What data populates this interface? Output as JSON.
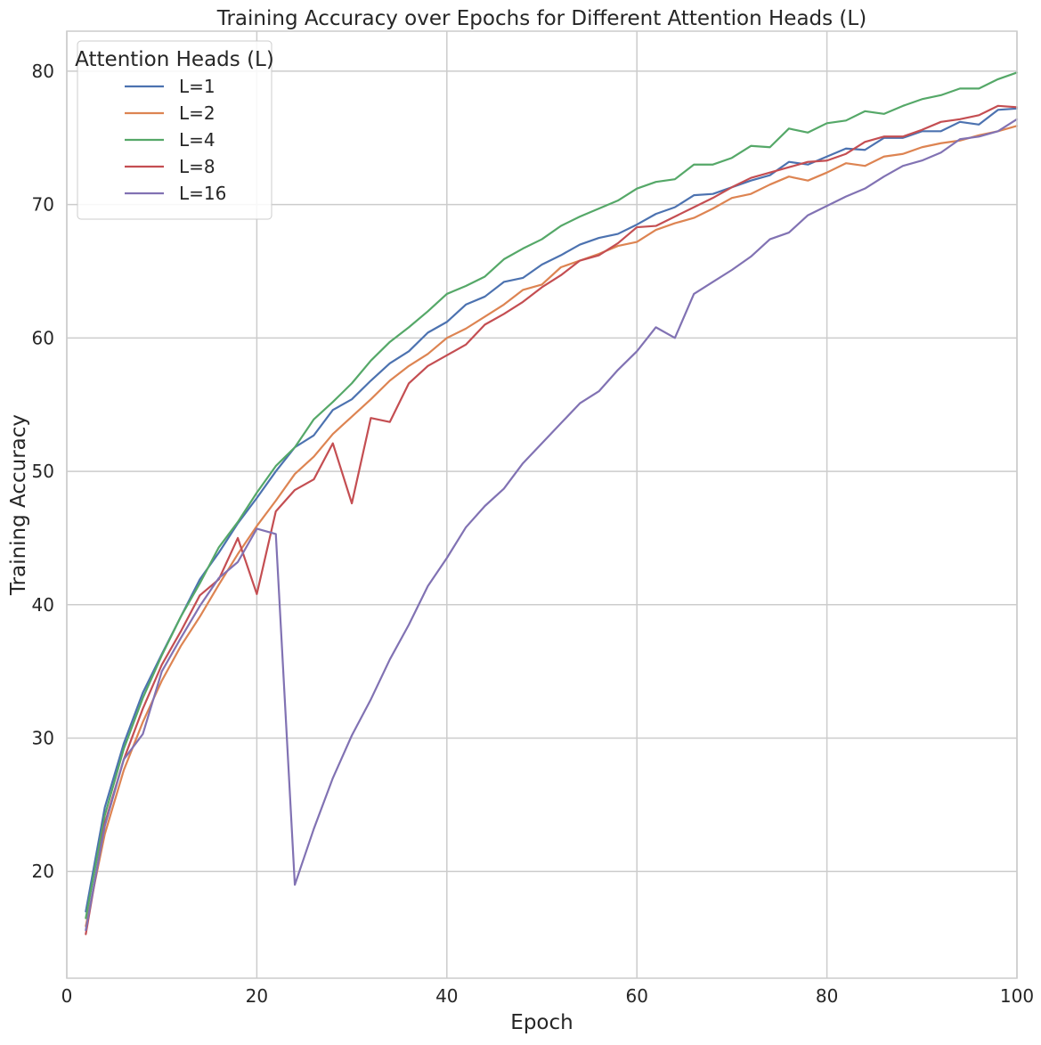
{
  "chart_data": {
    "type": "line",
    "title": "Training Accuracy over Epochs for Different Attention Heads (L)",
    "xlabel": "Epoch",
    "ylabel": "Training Accuracy",
    "xlim": [
      0,
      100
    ],
    "ylim": [
      12,
      83
    ],
    "xticks": [
      0,
      20,
      40,
      60,
      80,
      100
    ],
    "yticks": [
      20,
      30,
      40,
      50,
      60,
      70,
      80
    ],
    "grid": true,
    "legend": {
      "title": "Attention Heads (L)",
      "position": "top-left"
    },
    "x": [
      2,
      4,
      6,
      8,
      10,
      12,
      14,
      16,
      18,
      20,
      22,
      24,
      26,
      28,
      30,
      32,
      34,
      36,
      38,
      40,
      42,
      44,
      46,
      48,
      50,
      52,
      54,
      56,
      58,
      60,
      62,
      64,
      66,
      68,
      70,
      72,
      74,
      76,
      78,
      80,
      82,
      84,
      86,
      88,
      90,
      92,
      94,
      96,
      98,
      100
    ],
    "series": [
      {
        "name": "L=1",
        "color": "#4c72b0",
        "values": [
          17.0,
          24.8,
          29.6,
          33.4,
          36.3,
          39.1,
          41.9,
          43.9,
          46.1,
          48.0,
          50.0,
          51.8,
          52.7,
          54.6,
          55.4,
          56.8,
          58.1,
          59.0,
          60.4,
          61.2,
          62.5,
          63.1,
          64.2,
          64.5,
          65.5,
          66.2,
          67.0,
          67.5,
          67.8,
          68.5,
          69.3,
          69.8,
          70.7,
          70.8,
          71.3,
          71.8,
          72.2,
          73.2,
          73.0,
          73.6,
          74.2,
          74.1,
          75.0,
          75.0,
          75.5,
          75.5,
          76.2,
          76.0,
          77.1,
          77.2
        ]
      },
      {
        "name": "L=2",
        "color": "#dd8452",
        "values": [
          15.9,
          22.8,
          27.6,
          31.2,
          34.3,
          36.9,
          39.1,
          41.5,
          43.8,
          45.9,
          47.8,
          49.8,
          51.1,
          52.8,
          54.1,
          55.4,
          56.8,
          57.9,
          58.8,
          60.0,
          60.7,
          61.6,
          62.5,
          63.6,
          64.0,
          65.3,
          65.8,
          66.3,
          66.9,
          67.2,
          68.1,
          68.6,
          69.0,
          69.7,
          70.5,
          70.8,
          71.5,
          72.1,
          71.8,
          72.4,
          73.1,
          72.9,
          73.6,
          73.8,
          74.3,
          74.6,
          74.8,
          75.2,
          75.5,
          75.9
        ]
      },
      {
        "name": "L=4",
        "color": "#55a868",
        "values": [
          16.5,
          24.2,
          29.2,
          33.0,
          36.2,
          39.1,
          41.6,
          44.3,
          46.2,
          48.4,
          50.4,
          51.8,
          53.9,
          55.2,
          56.6,
          58.3,
          59.7,
          60.8,
          62.0,
          63.3,
          63.9,
          64.6,
          65.9,
          66.7,
          67.4,
          68.4,
          69.1,
          69.7,
          70.3,
          71.2,
          71.7,
          71.9,
          73.0,
          73.0,
          73.5,
          74.4,
          74.3,
          75.7,
          75.4,
          76.1,
          76.3,
          77.0,
          76.8,
          77.4,
          77.9,
          78.2,
          78.7,
          78.7,
          79.4,
          79.9
        ]
      },
      {
        "name": "L=8",
        "color": "#c44e52",
        "values": [
          15.3,
          23.6,
          28.4,
          32.2,
          35.5,
          38.0,
          40.7,
          41.9,
          45.0,
          40.8,
          47.0,
          48.6,
          49.4,
          52.1,
          47.6,
          54.0,
          53.7,
          56.6,
          57.9,
          58.7,
          59.5,
          61.0,
          61.8,
          62.7,
          63.8,
          64.7,
          65.8,
          66.2,
          67.1,
          68.3,
          68.4,
          69.1,
          69.8,
          70.5,
          71.3,
          72.0,
          72.4,
          72.8,
          73.2,
          73.3,
          73.8,
          74.7,
          75.1,
          75.1,
          75.6,
          76.2,
          76.4,
          76.7,
          77.4,
          77.3
        ]
      },
      {
        "name": "L=16",
        "color": "#8172b3",
        "values": [
          15.6,
          23.4,
          28.4,
          30.3,
          35.0,
          37.5,
          39.9,
          42.0,
          43.2,
          45.7,
          45.3,
          19.0,
          23.2,
          27.0,
          30.2,
          32.9,
          35.9,
          38.5,
          41.4,
          43.5,
          45.8,
          47.4,
          48.7,
          50.6,
          52.1,
          53.6,
          55.1,
          56.0,
          57.6,
          59.0,
          60.8,
          60.0,
          63.3,
          64.2,
          65.1,
          66.1,
          67.4,
          67.9,
          69.2,
          69.9,
          70.6,
          71.2,
          72.1,
          72.9,
          73.3,
          73.9,
          74.9,
          75.1,
          75.5,
          76.4
        ]
      }
    ]
  }
}
